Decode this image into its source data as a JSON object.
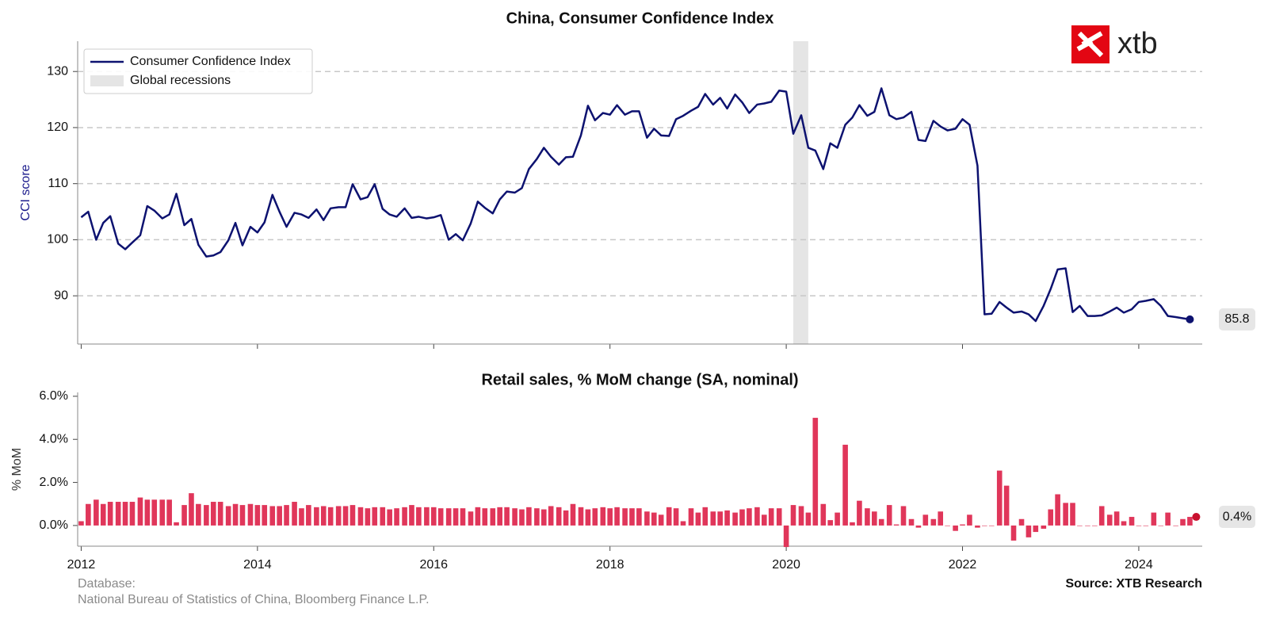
{
  "logo": "xtb",
  "footer": {
    "database": "Database:",
    "sources": "National Bureau of Statistics of China, Bloomberg Finance L.P.",
    "credit": "Source: XTB Research"
  },
  "chart_data": [
    {
      "type": "line",
      "title": "China, Consumer Confidence Index",
      "y_label": "CCI score",
      "xlim": [
        2011.96,
        2024.72
      ],
      "xticks": [
        2012,
        2014,
        2016,
        2018,
        2020,
        2022,
        2024
      ],
      "ylim": [
        81.4,
        135.4
      ],
      "yticks": [
        90,
        100,
        110,
        120,
        130
      ],
      "grid": true,
      "legend": "upper left",
      "recession": {
        "name": "Global recessions",
        "color": "#e5e5e5",
        "range": [
          2020.08,
          2020.25
        ]
      },
      "x": [
        2012,
        2012.08,
        2012.17,
        2012.25,
        2012.33,
        2012.42,
        2012.5,
        2012.58,
        2012.67,
        2012.75,
        2012.83,
        2012.92,
        2013,
        2013.08,
        2013.17,
        2013.25,
        2013.33,
        2013.42,
        2013.5,
        2013.58,
        2013.67,
        2013.75,
        2013.83,
        2013.92,
        2014,
        2014.08,
        2014.17,
        2014.25,
        2014.33,
        2014.42,
        2014.5,
        2014.58,
        2014.67,
        2014.75,
        2014.83,
        2014.92,
        2015,
        2015.08,
        2015.17,
        2015.25,
        2015.33,
        2015.42,
        2015.5,
        2015.58,
        2015.67,
        2015.75,
        2015.83,
        2015.92,
        2016,
        2016.08,
        2016.17,
        2016.25,
        2016.33,
        2016.42,
        2016.5,
        2016.58,
        2016.67,
        2016.75,
        2016.83,
        2016.92,
        2017,
        2017.08,
        2017.17,
        2017.25,
        2017.33,
        2017.42,
        2017.5,
        2017.58,
        2017.67,
        2017.75,
        2017.83,
        2017.92,
        2018,
        2018.08,
        2018.17,
        2018.25,
        2018.33,
        2018.42,
        2018.5,
        2018.58,
        2018.67,
        2018.75,
        2018.83,
        2018.92,
        2019,
        2019.08,
        2019.17,
        2019.25,
        2019.33,
        2019.42,
        2019.5,
        2019.58,
        2019.67,
        2019.75,
        2019.83,
        2019.92,
        2020,
        2020.08,
        2020.17,
        2020.25,
        2020.33,
        2020.42,
        2020.5,
        2020.58,
        2020.67,
        2020.75,
        2020.83,
        2020.92,
        2021,
        2021.08,
        2021.17,
        2021.25,
        2021.33,
        2021.42,
        2021.5,
        2021.58,
        2021.67,
        2021.75,
        2021.83,
        2021.92,
        2022,
        2022.08,
        2022.17,
        2022.25,
        2022.33,
        2022.42,
        2022.5,
        2022.58,
        2022.67,
        2022.75,
        2022.83,
        2022.92,
        2023,
        2023.08,
        2023.17,
        2023.25,
        2023.33,
        2023.42,
        2023.5,
        2023.58,
        2023.67,
        2023.75,
        2023.83,
        2023.92,
        2024,
        2024.08,
        2024.17,
        2024.25,
        2024.33,
        2024.42,
        2024.5,
        2024.58
      ],
      "series": [
        {
          "name": "Consumer Confidence Index",
          "color": "#0d1270",
          "values": [
            104,
            105,
            100,
            103,
            104.2,
            99.3,
            98.3,
            99.5,
            100.8,
            106,
            105.2,
            103.8,
            104.5,
            108.2,
            102.6,
            103.7,
            99.1,
            97,
            97.2,
            97.8,
            99.9,
            103,
            99,
            102.3,
            101.3,
            103.1,
            108,
            105,
            102.3,
            104.8,
            104.5,
            103.9,
            105.4,
            103.5,
            105.6,
            105.8,
            105.8,
            109.9,
            107.2,
            107.6,
            109.9,
            105.5,
            104.5,
            104.1,
            105.6,
            103.9,
            104.1,
            103.8,
            104,
            104.4,
            100,
            101,
            99.9,
            102.9,
            106.8,
            105.7,
            104.7,
            107.2,
            108.6,
            108.4,
            109.2,
            112.6,
            114.4,
            116.4,
            114.8,
            113.4,
            114.7,
            114.8,
            118.6,
            123.9,
            121.3,
            122.6,
            122.3,
            124,
            122.3,
            122.9,
            122.9,
            118.2,
            119.8,
            118.6,
            118.5,
            121.5,
            122.1,
            123,
            123.7,
            126,
            124.1,
            125.3,
            123.4,
            125.9,
            124.5,
            122.6,
            124.1,
            124.3,
            124.6,
            126.6,
            126.4,
            118.9,
            122.2,
            116.4,
            115.9,
            112.6,
            117.2,
            116.4,
            120.5,
            121.8,
            124,
            122.1,
            122.8,
            127,
            122.2,
            121.5,
            121.8,
            122.8,
            117.8,
            117.6,
            121.2,
            120.2,
            119.5,
            119.8,
            121.5,
            120.5,
            113.2,
            86.7,
            86.8,
            88.9,
            87.9,
            87,
            87.2,
            86.7,
            85.5,
            88.2,
            91.2,
            94.7,
            94.9,
            87.1,
            88.2,
            86.4,
            86.4,
            86.5,
            87.2,
            87.9,
            87,
            87.6,
            88.9,
            89.1,
            89.4,
            88.2,
            86.4,
            86.2,
            86,
            85.8
          ]
        }
      ]
    },
    {
      "type": "bar",
      "title": "Retail sales, % MoM change (SA, nominal)",
      "y_label": "% MoM",
      "xlim": [
        2011.96,
        2024.72
      ],
      "xticks": [
        2012,
        2014,
        2016,
        2018,
        2020,
        2022,
        2024
      ],
      "ylim": [
        -0.96,
        6.18
      ],
      "yticks": [
        {
          "value": 0,
          "label": "0.0%"
        },
        {
          "value": 2,
          "label": "2.0%"
        },
        {
          "value": 4,
          "label": "4.0%"
        },
        {
          "value": 6,
          "label": "6.0%"
        }
      ],
      "x": [
        2012,
        2012.08,
        2012.17,
        2012.25,
        2012.33,
        2012.42,
        2012.5,
        2012.58,
        2012.67,
        2012.75,
        2012.83,
        2012.92,
        2013,
        2013.08,
        2013.17,
        2013.25,
        2013.33,
        2013.42,
        2013.5,
        2013.58,
        2013.67,
        2013.75,
        2013.83,
        2013.92,
        2014,
        2014.08,
        2014.17,
        2014.25,
        2014.33,
        2014.42,
        2014.5,
        2014.58,
        2014.67,
        2014.75,
        2014.83,
        2014.92,
        2015,
        2015.08,
        2015.17,
        2015.25,
        2015.33,
        2015.42,
        2015.5,
        2015.58,
        2015.67,
        2015.75,
        2015.83,
        2015.92,
        2016,
        2016.08,
        2016.17,
        2016.25,
        2016.33,
        2016.42,
        2016.5,
        2016.58,
        2016.67,
        2016.75,
        2016.83,
        2016.92,
        2017,
        2017.08,
        2017.17,
        2017.25,
        2017.33,
        2017.42,
        2017.5,
        2017.58,
        2017.67,
        2017.75,
        2017.83,
        2017.92,
        2018,
        2018.08,
        2018.17,
        2018.25,
        2018.33,
        2018.42,
        2018.5,
        2018.58,
        2018.67,
        2018.75,
        2018.83,
        2018.92,
        2019,
        2019.08,
        2019.17,
        2019.25,
        2019.33,
        2019.42,
        2019.5,
        2019.58,
        2019.67,
        2019.75,
        2019.83,
        2019.92,
        2020,
        2020.08,
        2020.17,
        2020.25,
        2020.33,
        2020.42,
        2020.5,
        2020.58,
        2020.67,
        2020.75,
        2020.83,
        2020.92,
        2021,
        2021.08,
        2021.17,
        2021.25,
        2021.33,
        2021.42,
        2021.5,
        2021.58,
        2021.67,
        2021.75,
        2021.83,
        2021.92,
        2022,
        2022.08,
        2022.17,
        2022.25,
        2022.33,
        2022.42,
        2022.5,
        2022.58,
        2022.67,
        2022.75,
        2022.83,
        2022.92,
        2023,
        2023.08,
        2023.17,
        2023.25,
        2023.33,
        2023.42,
        2023.5,
        2023.58,
        2023.67,
        2023.75,
        2023.83,
        2023.92,
        2024,
        2024.08,
        2024.17,
        2024.25,
        2024.33,
        2024.42,
        2024.5,
        2024.58
      ],
      "series": [
        {
          "name": "Retail sales",
          "color": "#e0365a",
          "values": [
            0.2,
            1,
            1.2,
            1,
            1.1,
            1.1,
            1.1,
            1.1,
            1.3,
            1.2,
            1.2,
            1.2,
            1.2,
            0.15,
            0.95,
            1.5,
            1,
            0.95,
            1.1,
            1.1,
            0.9,
            1,
            0.95,
            1,
            0.95,
            0.95,
            0.9,
            0.9,
            0.95,
            1.1,
            0.8,
            0.95,
            0.85,
            0.9,
            0.85,
            0.9,
            0.9,
            0.95,
            0.85,
            0.8,
            0.85,
            0.85,
            0.75,
            0.8,
            0.85,
            0.95,
            0.85,
            0.85,
            0.85,
            0.8,
            0.8,
            0.8,
            0.8,
            0.65,
            0.85,
            0.8,
            0.8,
            0.85,
            0.85,
            0.8,
            0.75,
            0.85,
            0.8,
            0.75,
            0.9,
            0.85,
            0.7,
            1,
            0.85,
            0.75,
            0.8,
            0.85,
            0.8,
            0.85,
            0.8,
            0.8,
            0.8,
            0.65,
            0.6,
            0.5,
            0.85,
            0.8,
            0.2,
            0.8,
            0.6,
            0.85,
            0.65,
            0.65,
            0.7,
            0.6,
            0.75,
            0.8,
            0.85,
            0.5,
            0.8,
            0.8,
            -1,
            0.95,
            0.9,
            0.6,
            5,
            1,
            0.25,
            0.6,
            3.75,
            0.15,
            1.15,
            0.8,
            0.65,
            0.3,
            0.95,
            0.05,
            0.9,
            0.3,
            -0.1,
            0.5,
            0.3,
            0.65,
            0,
            -0.25,
            0.05,
            0.5,
            -0.1,
            0,
            0,
            2.55,
            1.85,
            -0.7,
            0.3,
            -0.55,
            -0.3,
            -0.15,
            0.75,
            1.45,
            1.05,
            1.05,
            0,
            0,
            0,
            0.9,
            0.5,
            0.65,
            0.2,
            0.4,
            0,
            0,
            0.6,
            0,
            0.6,
            0,
            0.3,
            0.4
          ],
          "value_labels": [
            null,
            null,
            null,
            null,
            null,
            null,
            null,
            null,
            null,
            null,
            null,
            null,
            null,
            null,
            null,
            null,
            null,
            null,
            null,
            null,
            null,
            null,
            null,
            null,
            null,
            null,
            null,
            null,
            null,
            null,
            null,
            null,
            null,
            null,
            null,
            null,
            null,
            null,
            null,
            null,
            null,
            null,
            null,
            null,
            null,
            null,
            null,
            null,
            null,
            null,
            null,
            null,
            null,
            null,
            null,
            null,
            null,
            null,
            null,
            null,
            null,
            null,
            null,
            null,
            null,
            null,
            null,
            null,
            null,
            null,
            null,
            null,
            null,
            null,
            null,
            null,
            null,
            null,
            null,
            null,
            null,
            null,
            null,
            null,
            null,
            null,
            null,
            null,
            null,
            null,
            null,
            null,
            null,
            null,
            null,
            null,
            null,
            null,
            null,
            null,
            null,
            null,
            null,
            null,
            null,
            null,
            null,
            null,
            null,
            null,
            null,
            null,
            null,
            null,
            null,
            null,
            null,
            null,
            null,
            null,
            null,
            null,
            null,
            null,
            null,
            null,
            null,
            null,
            null,
            null,
            null,
            null,
            null,
            null,
            null,
            null,
            null,
            null,
            null,
            null,
            null,
            null,
            null,
            null,
            null,
            null,
            null,
            null,
            null,
            null,
            null,
            "0.4%"
          ]
        }
      ]
    }
  ]
}
